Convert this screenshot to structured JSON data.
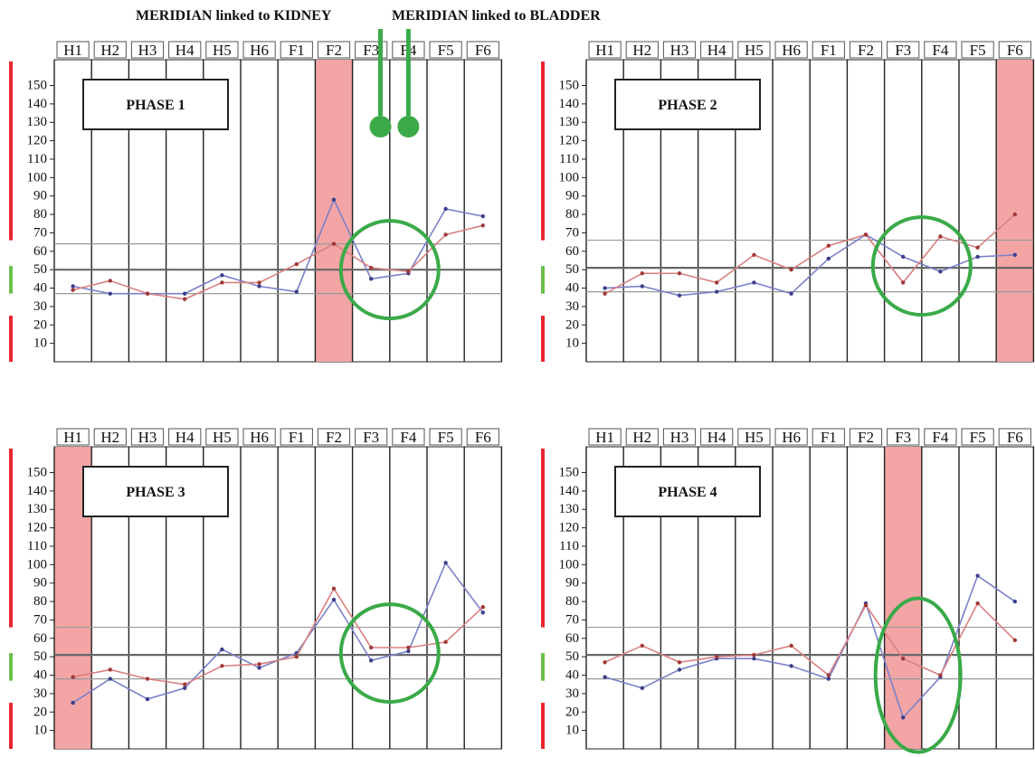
{
  "annotations": {
    "kidney": "MERIDIAN linked to KIDNEY",
    "bladder": "MERIDIAN linked to BLADDER",
    "marker_color": "#3aaa48"
  },
  "colors": {
    "blue_series": "#7b80c8",
    "red_series": "#d98080",
    "highlight": "#f2a0a0",
    "circle": "#3aaa48",
    "band_red": "#e8262e",
    "band_green": "#6cc04a"
  },
  "chart_data": [
    {
      "type": "line",
      "title": "PHASE 1",
      "categories": [
        "H1",
        "H2",
        "H3",
        "H4",
        "H5",
        "H6",
        "F1",
        "F2",
        "F3",
        "F4",
        "F5",
        "F6"
      ],
      "yticks": [
        10,
        20,
        30,
        40,
        50,
        60,
        70,
        80,
        90,
        100,
        110,
        120,
        130,
        140,
        150
      ],
      "highlight": "F2",
      "circle": {
        "center": [
          "F3/F4 boundary",
          50
        ],
        "shape": "circle"
      },
      "reference_lines": [
        37,
        50,
        64
      ],
      "series": [
        {
          "color": "blue",
          "values": [
            41,
            37,
            37,
            37,
            47,
            41,
            38,
            88,
            45,
            48,
            83,
            79
          ]
        },
        {
          "color": "red",
          "values": [
            39,
            44,
            37,
            34,
            43,
            43,
            53,
            64,
            51,
            49,
            69,
            74
          ]
        }
      ]
    },
    {
      "type": "line",
      "title": "PHASE 2",
      "categories": [
        "H1",
        "H2",
        "H3",
        "H4",
        "H5",
        "H6",
        "F1",
        "F2",
        "F3",
        "F4",
        "F5",
        "F6"
      ],
      "yticks": [
        10,
        20,
        30,
        40,
        50,
        60,
        70,
        80,
        90,
        100,
        110,
        120,
        130,
        140,
        150
      ],
      "highlight": "F6",
      "circle": {
        "center": [
          "F3/F4 boundary",
          52
        ],
        "shape": "circle"
      },
      "reference_lines": [
        38,
        51,
        66
      ],
      "series": [
        {
          "color": "blue",
          "values": [
            40,
            41,
            36,
            38,
            43,
            37,
            56,
            69,
            57,
            49,
            57,
            58
          ]
        },
        {
          "color": "red",
          "values": [
            37,
            48,
            48,
            43,
            58,
            50,
            63,
            69,
            43,
            68,
            62,
            80
          ]
        }
      ]
    },
    {
      "type": "line",
      "title": "PHASE 3",
      "categories": [
        "H1",
        "H2",
        "H3",
        "H4",
        "H5",
        "H6",
        "F1",
        "F2",
        "F3",
        "F4",
        "F5",
        "F6"
      ],
      "yticks": [
        10,
        20,
        30,
        40,
        50,
        60,
        70,
        80,
        90,
        100,
        110,
        120,
        130,
        140,
        150
      ],
      "highlight": "H1",
      "circle": {
        "center": [
          "F3/F4 boundary",
          52
        ],
        "shape": "circle"
      },
      "reference_lines": [
        38,
        51,
        66
      ],
      "series": [
        {
          "color": "blue",
          "values": [
            25,
            38,
            27,
            33,
            54,
            44,
            52,
            81,
            48,
            53,
            101,
            74
          ]
        },
        {
          "color": "red",
          "values": [
            39,
            43,
            38,
            35,
            45,
            46,
            50,
            87,
            55,
            55,
            58,
            77
          ]
        }
      ]
    },
    {
      "type": "line",
      "title": "PHASE 4",
      "categories": [
        "H1",
        "H2",
        "H3",
        "H4",
        "H5",
        "H6",
        "F1",
        "F2",
        "F3",
        "F4",
        "F5",
        "F6"
      ],
      "yticks": [
        10,
        20,
        30,
        40,
        50,
        60,
        70,
        80,
        90,
        100,
        110,
        120,
        130,
        140,
        150
      ],
      "highlight": "F3",
      "circle": {
        "center": [
          "F3",
          40
        ],
        "shape": "ellipse"
      },
      "reference_lines": [
        38,
        51,
        66
      ],
      "series": [
        {
          "color": "blue",
          "values": [
            39,
            33,
            43,
            49,
            49,
            45,
            38,
            79,
            17,
            39,
            94,
            80
          ]
        },
        {
          "color": "red",
          "values": [
            47,
            56,
            47,
            50,
            51,
            56,
            40,
            78,
            49,
            40,
            79,
            59
          ]
        }
      ]
    }
  ]
}
